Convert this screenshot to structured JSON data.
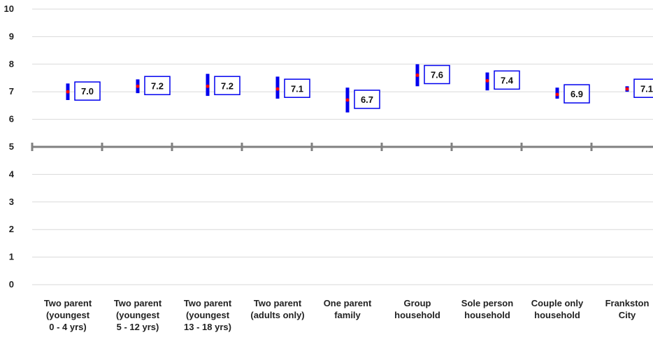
{
  "chart_data": {
    "type": "error-bar",
    "top_text": "",
    "categories": [
      [
        "Two parent",
        "(youngest",
        "0 - 4 yrs)"
      ],
      [
        "Two parent",
        "(youngest",
        "5 - 12 yrs)"
      ],
      [
        "Two parent",
        "(youngest",
        "13 - 18 yrs)"
      ],
      [
        "Two parent",
        "(adults only)"
      ],
      [
        "One parent",
        "family"
      ],
      [
        "Group",
        "household"
      ],
      [
        "Sole person",
        "household"
      ],
      [
        "Couple only",
        "household"
      ],
      [
        "Frankston",
        "City"
      ]
    ],
    "values": [
      7.0,
      7.2,
      7.2,
      7.1,
      6.7,
      7.6,
      7.4,
      6.9,
      7.1
    ],
    "value_labels": [
      "7.0",
      "7.2",
      "7.2",
      "7.1",
      "6.7",
      "7.6",
      "7.4",
      "6.9",
      "7.1"
    ],
    "lower": [
      6.7,
      6.95,
      6.85,
      6.75,
      6.25,
      7.2,
      7.05,
      6.75,
      7.0
    ],
    "upper": [
      7.3,
      7.45,
      7.65,
      7.55,
      7.15,
      8.0,
      7.7,
      7.15,
      7.2
    ],
    "yticks": [
      "0",
      "1",
      "2",
      "3",
      "4",
      "5",
      "6",
      "7",
      "8",
      "9",
      "10"
    ],
    "ylim": [
      0,
      10
    ],
    "reference_line": 5,
    "grid": true,
    "colors": {
      "bar": "#0000ee",
      "point": "#ff0000",
      "label_border": "#0000ee",
      "grid": "#d9d9d9",
      "reference": "#808080",
      "text": "#222222"
    }
  }
}
